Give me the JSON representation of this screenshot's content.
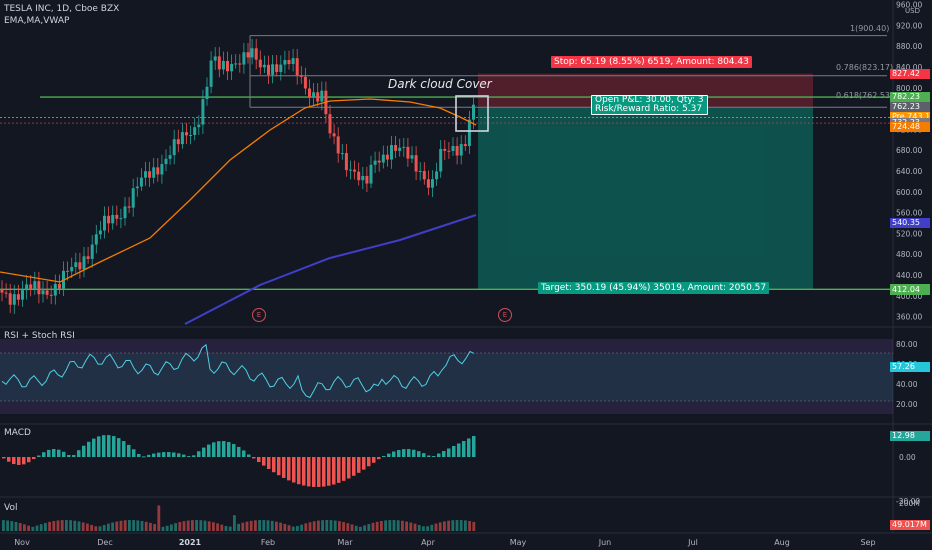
{
  "header": {
    "symbol_line": "TESLA INC, 1D, Cboe BZX",
    "indicators_line": "EMA,MA,VWAP"
  },
  "annotation": {
    "pattern": "Dark cloud Cover",
    "stop": "Stop: 65.19 (8.55%) 6519, Amount: 804.43",
    "open_pnl": "Open P&L: 30.00, Qty: 3",
    "rr": "Risk/Reward Ratio: 5.37",
    "target": "Target: 350.19 (45.94%) 35019, Amount: 2050.57",
    "fib_1": "1(900.40)",
    "fib_0786": "0.786(823.17)",
    "fib_0618": "0.618(762.53)",
    "earnings_mark": "E"
  },
  "price_axis": {
    "unit": "USD",
    "ticks": [
      "960.00",
      "920.00",
      "880.00",
      "840.00",
      "800.00",
      "760.00",
      "720.00",
      "680.00",
      "640.00",
      "600.00",
      "560.00",
      "520.00",
      "480.00",
      "440.00",
      "400.00",
      "360.00"
    ],
    "tags": [
      {
        "text": "827.42",
        "value": 827.42,
        "color": "#f23645"
      },
      {
        "text": "782.23",
        "value": 782.23,
        "color": "#4caf50"
      },
      {
        "text": "762.23",
        "value": 762.23,
        "color": "#5d606b"
      },
      {
        "text": "Pre  743.11",
        "value": 743.11,
        "color": "#ff9800"
      },
      {
        "text": "732.23",
        "value": 732.23,
        "color": "#787b86"
      },
      {
        "text": "724.48",
        "value": 724.48,
        "color": "#f57c00"
      },
      {
        "text": "540.35",
        "value": 540.35,
        "color": "#3f3fc8"
      },
      {
        "text": "412.45",
        "value": 412.45,
        "color": "#4caf50"
      },
      {
        "text": "412.04",
        "value": 412.04,
        "color": "#4caf50"
      }
    ]
  },
  "rsi": {
    "label": "RSI + Stoch RSI",
    "ticks": [
      "80.00",
      "60.00",
      "40.00",
      "20.00"
    ],
    "tag": "57.26",
    "tag_value": 57.26
  },
  "macd": {
    "label": "MACD",
    "ticks": [
      "0.00",
      "-20.00"
    ],
    "tag": "12.98",
    "tag_value": 12.98
  },
  "volume": {
    "label": "Vol",
    "ticks": [
      "200M"
    ],
    "tag": "49.017M"
  },
  "time_axis": {
    "labels": [
      "Nov",
      "Dec",
      "2021",
      "Feb",
      "Mar",
      "Apr",
      "May",
      "Jun",
      "Jul",
      "Aug",
      "Sep"
    ]
  },
  "chart_data": {
    "type": "candlestick",
    "title": "TESLA INC, 1D, Cboe BZX",
    "ylabel": "USD",
    "ylim": [
      340,
      965
    ],
    "x_range": [
      "Nov",
      "Sep"
    ],
    "levels": {
      "stop": 827.42,
      "entry": 762.23,
      "target": 412.04,
      "resistance_line": 782.23,
      "support_line": 412.45,
      "fib_1": 900.4,
      "fib_0786": 823.17,
      "fib_0618": 762.53
    },
    "moving_average_orange_last": 724.48,
    "moving_average_blue_last": 540.35,
    "last_price": 743.11
  }
}
